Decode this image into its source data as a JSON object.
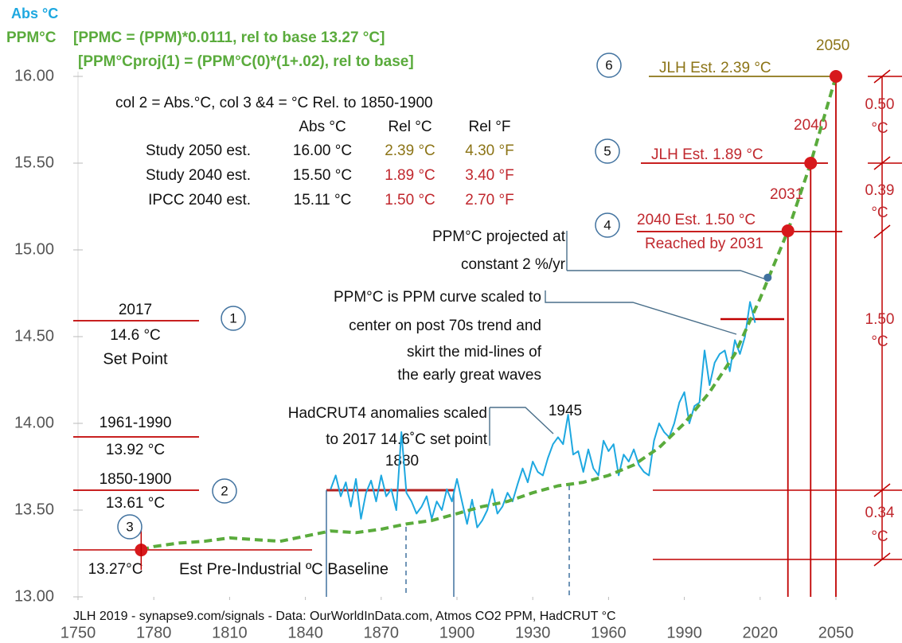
{
  "chart_data": {
    "type": "line",
    "subtitle": "[PPMC = (PPM)*0.0111, rel to base 13.27 °C]",
    "subtitle2": "[PPM°Cproj(1) = (PPM°C(0)*(1+.02), rel to base]",
    "footer": "JLH 2019 - synapse9.com/signals - Data: OurWorldInData.com, Atmos CO2 PPM, HadCRUT °C",
    "xlim": [
      1750,
      2050
    ],
    "xticks": [
      1750,
      1780,
      1810,
      1840,
      1870,
      1900,
      1930,
      1960,
      1990,
      2020,
      2050
    ],
    "ylim": [
      13,
      16
    ],
    "yticks": [
      {
        "value": 13,
        "label": "13.00"
      },
      {
        "value": 13.5,
        "label": "13.50"
      },
      {
        "value": 14,
        "label": "14.00"
      },
      {
        "value": 14.5,
        "label": "14.50"
      },
      {
        "value": 15,
        "label": "15.00"
      },
      {
        "value": 15.5,
        "label": "15.50"
      },
      {
        "value": 16,
        "label": "16.00"
      }
    ],
    "series": [
      {
        "name": "Abs °C",
        "color": "#1ea8e0",
        "x": [
          1850,
          1852,
          1854,
          1856,
          1858,
          1860,
          1862,
          1864,
          1866,
          1868,
          1870,
          1872,
          1874,
          1876,
          1878,
          1880,
          1882,
          1884,
          1886,
          1888,
          1890,
          1892,
          1894,
          1896,
          1898,
          1900,
          1902,
          1904,
          1906,
          1908,
          1910,
          1912,
          1914,
          1916,
          1918,
          1920,
          1922,
          1924,
          1926,
          1928,
          1930,
          1932,
          1934,
          1936,
          1938,
          1940,
          1942,
          1944,
          1946,
          1948,
          1950,
          1952,
          1954,
          1956,
          1958,
          1960,
          1962,
          1964,
          1966,
          1968,
          1970,
          1972,
          1974,
          1976,
          1978,
          1980,
          1982,
          1984,
          1986,
          1988,
          1990,
          1992,
          1994,
          1996,
          1998,
          2000,
          2002,
          2004,
          2006,
          2008,
          2010,
          2012,
          2014,
          2016,
          2018
        ],
        "values": [
          13.62,
          13.7,
          13.58,
          13.66,
          13.52,
          13.68,
          13.45,
          13.6,
          13.67,
          13.55,
          13.7,
          13.58,
          13.62,
          13.5,
          13.95,
          13.6,
          13.55,
          13.48,
          13.52,
          13.58,
          13.45,
          13.55,
          13.5,
          13.62,
          13.55,
          13.68,
          13.55,
          13.42,
          13.56,
          13.4,
          13.44,
          13.5,
          13.62,
          13.48,
          13.52,
          13.6,
          13.55,
          13.65,
          13.74,
          13.66,
          13.78,
          13.72,
          13.7,
          13.8,
          13.88,
          13.92,
          13.88,
          14.05,
          13.82,
          13.84,
          13.72,
          13.85,
          13.74,
          13.7,
          13.9,
          13.84,
          13.88,
          13.7,
          13.82,
          13.78,
          13.85,
          13.76,
          13.72,
          13.7,
          13.9,
          14.0,
          13.95,
          13.92,
          14.0,
          14.12,
          14.18,
          14.0,
          14.1,
          14.12,
          14.42,
          14.22,
          14.35,
          14.4,
          14.42,
          14.3,
          14.48,
          14.4,
          14.5,
          14.7,
          14.58
        ]
      },
      {
        "name": "PPM°C",
        "color": "#5aab3c",
        "x": [
          1775,
          1780,
          1790,
          1800,
          1810,
          1820,
          1830,
          1840,
          1850,
          1860,
          1870,
          1880,
          1890,
          1900,
          1910,
          1920,
          1930,
          1940,
          1950,
          1960,
          1970,
          1980,
          1990,
          2000,
          2010,
          2020,
          2031,
          2040,
          2050
        ],
        "values": [
          13.27,
          13.29,
          13.31,
          13.32,
          13.34,
          13.33,
          13.32,
          13.35,
          13.38,
          13.37,
          13.39,
          13.42,
          13.44,
          13.48,
          13.52,
          13.55,
          13.6,
          13.64,
          13.66,
          13.7,
          13.76,
          13.86,
          14.0,
          14.18,
          14.4,
          14.72,
          15.11,
          15.5,
          16.0
        ]
      }
    ],
    "points": {
      "color": "#d7191c",
      "x": [
        1775,
        2031,
        2040,
        2050
      ],
      "values": [
        13.27,
        15.11,
        15.5,
        16.0
      ]
    },
    "projection_point": {
      "color": "#41729f",
      "x": 2023,
      "value": 14.84
    },
    "table": {
      "caption": "col 2 = Abs.°C, col 3 &4 = °C Rel. to 1850-1900",
      "header": [
        "Abs °C",
        "Rel °C",
        "Rel °F"
      ],
      "rows": [
        [
          "Study 2050 est.",
          "16.00 °C",
          "2.39 °C",
          "4.30 °F"
        ],
        [
          "Study 2040 est.",
          "15.50 °C",
          "1.89 °C",
          "3.40 °F"
        ],
        [
          "IPCC 2040 est.",
          "15.11 °C",
          "1.50 °C",
          "2.70 °F"
        ]
      ]
    },
    "reference_labels": [
      [
        "2017",
        "14.6  °C",
        "Set Point"
      ],
      [
        "1961-1990",
        "13.92  °C"
      ],
      [
        "1850-1900",
        "13.61  °C"
      ],
      [
        "13.27°C"
      ]
    ],
    "baseline_label": "Est Pre-Industrial ºC Baseline",
    "numbers": [
      "1",
      "2",
      "3",
      "4",
      "5",
      "6"
    ],
    "year_labels": [
      "2050",
      "2040",
      "2031"
    ],
    "targets": [
      "JLH Est. 2.39 °C",
      "JLH Est. 1.89 °C",
      "2040 Est. 1.50 °C",
      "Reached by 2031"
    ],
    "notes": {
      "projection": [
        "PPM°C projected at",
        "constant 2 %/yr"
      ],
      "scaling": [
        "PPM°C  is  PPM curve scaled to",
        "center on  post 70s trend and",
        "skirt the mid-lines of",
        "the early great waves"
      ],
      "hadcrut": [
        "HadCRUT4 anomalies scaled",
        "to 2017 14.6˚C set point"
      ],
      "years": [
        "1945",
        "1880"
      ]
    },
    "spans": {
      "unit": "°C",
      "labels": [
        "0.50",
        "0.39",
        "1.50",
        "0.34"
      ]
    }
  }
}
